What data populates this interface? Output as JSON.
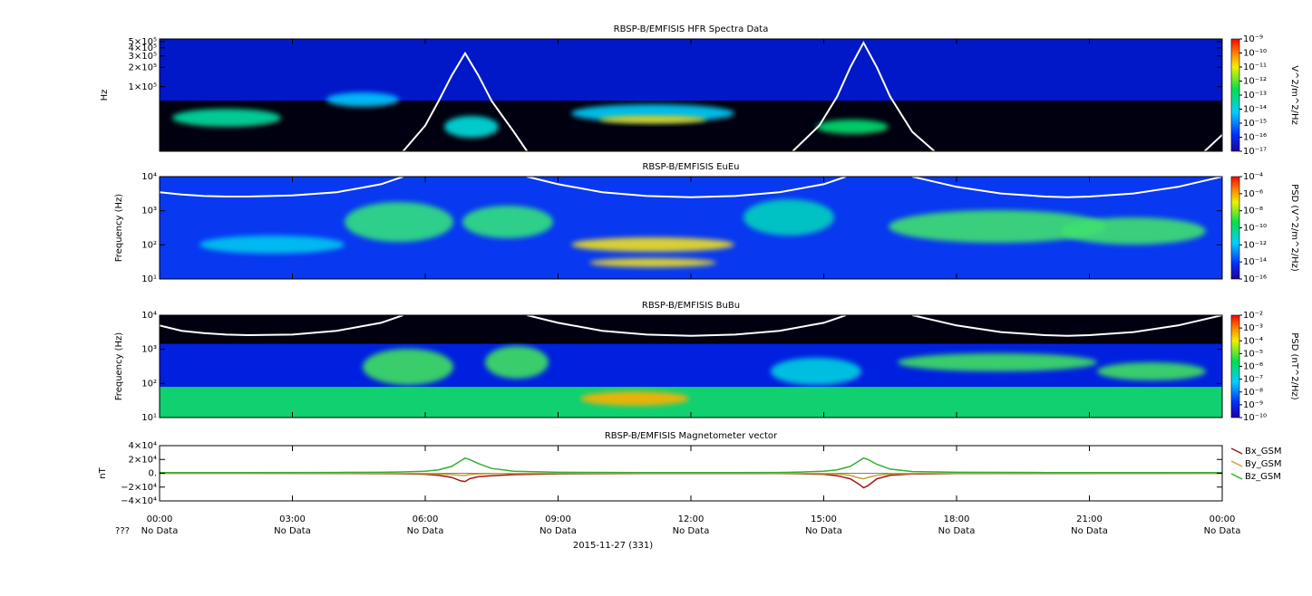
{
  "chart_data": [
    {
      "type": "spectrogram",
      "title": "RBSP-B/EMFISIS  HFR Spectra Data",
      "ylabel": "Hz",
      "log_y": true,
      "ylim": [
        10000,
        550000
      ],
      "yticks": [
        {
          "value": 500000,
          "label": "5×10⁵"
        },
        {
          "value": 400000,
          "label": "4×10⁵"
        },
        {
          "value": 300000,
          "label": "3×10⁵"
        },
        {
          "value": 200000,
          "label": "2×10⁵"
        },
        {
          "value": 100000,
          "label": "1×10⁵"
        }
      ],
      "colorbar": {
        "label": "V^2/m^2/Hz",
        "lim": [
          1e-17,
          1e-09
        ],
        "ticks": [
          {
            "value": 1e-09,
            "label": "10⁻⁹"
          },
          {
            "value": 1e-10,
            "label": "10⁻¹⁰"
          },
          {
            "value": 1e-11,
            "label": "10⁻¹¹"
          },
          {
            "value": 1e-12,
            "label": "10⁻¹²"
          },
          {
            "value": 1e-13,
            "label": "10⁻¹³"
          },
          {
            "value": 1e-14,
            "label": "10⁻¹⁴"
          },
          {
            "value": 1e-15,
            "label": "10⁻¹⁵"
          },
          {
            "value": 1e-16,
            "label": "10⁻¹⁶"
          },
          {
            "value": 1e-17,
            "label": "10⁻¹⁷"
          }
        ]
      },
      "overlay": {
        "color": "#ffffff",
        "x": [
          5.5,
          6,
          6.3,
          6.6,
          6.9,
          7.2,
          7.5,
          8,
          8.3,
          11,
          14.3,
          14.9,
          15.3,
          15.6,
          15.9,
          16.2,
          16.5,
          17,
          17.5,
          20,
          23.6,
          24
        ],
        "values": [
          10000,
          25000,
          60000,
          150000,
          330000,
          150000,
          60000,
          20000,
          10000,
          null,
          10000,
          25000,
          70000,
          200000,
          480000,
          200000,
          70000,
          20000,
          10000,
          null,
          10000,
          18000
        ]
      }
    },
    {
      "type": "spectrogram",
      "title": "RBSP-B/EMFISIS  EuEu",
      "ylabel": "Frequency (Hz)",
      "log_y": true,
      "ylim": [
        10,
        10000
      ],
      "yticks": [
        {
          "value": 10000,
          "label": "10⁴"
        },
        {
          "value": 1000,
          "label": "10³"
        },
        {
          "value": 100,
          "label": "10²"
        },
        {
          "value": 10,
          "label": "10¹"
        }
      ],
      "colorbar": {
        "label": "PSD (V^2/m^2/Hz)",
        "lim": [
          1e-16,
          0.0001
        ],
        "ticks": [
          {
            "value": 0.0001,
            "label": "10⁻⁴"
          },
          {
            "value": 1e-06,
            "label": "10⁻⁶"
          },
          {
            "value": 1e-08,
            "label": "10⁻⁸"
          },
          {
            "value": 1e-10,
            "label": "10⁻¹⁰"
          },
          {
            "value": 1e-12,
            "label": "10⁻¹²"
          },
          {
            "value": 1e-14,
            "label": "10⁻¹⁴"
          },
          {
            "value": 1e-16,
            "label": "10⁻¹⁶"
          }
        ]
      },
      "overlay": {
        "color": "#ffffff",
        "x": [
          0,
          0.5,
          1,
          1.5,
          2,
          3,
          4,
          5,
          5.5,
          6.9,
          8.3,
          9,
          10,
          11,
          12,
          13,
          14,
          15,
          15.5,
          16,
          17,
          18,
          19,
          20,
          20.5,
          21,
          22,
          23,
          24
        ],
        "values": [
          3500,
          3000,
          2700,
          2600,
          2600,
          2800,
          3500,
          6000,
          10000,
          null,
          10000,
          6000,
          3500,
          2700,
          2500,
          2700,
          3500,
          6000,
          10000,
          null,
          10000,
          5000,
          3200,
          2600,
          2500,
          2600,
          3200,
          5000,
          10000
        ]
      }
    },
    {
      "type": "spectrogram",
      "title": "RBSP-B/EMFISIS  BuBu",
      "ylabel": "Frequency (Hz)",
      "log_y": true,
      "ylim": [
        10,
        10000
      ],
      "yticks": [
        {
          "value": 10000,
          "label": "10⁴"
        },
        {
          "value": 1000,
          "label": "10³"
        },
        {
          "value": 100,
          "label": "10²"
        },
        {
          "value": 10,
          "label": "10¹"
        }
      ],
      "colorbar": {
        "label": "PSD (nT^2/Hz)",
        "lim": [
          1e-10,
          0.01
        ],
        "ticks": [
          {
            "value": 0.01,
            "label": "10⁻²"
          },
          {
            "value": 0.001,
            "label": "10⁻³"
          },
          {
            "value": 0.0001,
            "label": "10⁻⁴"
          },
          {
            "value": 1e-05,
            "label": "10⁻⁵"
          },
          {
            "value": 1e-06,
            "label": "10⁻⁶"
          },
          {
            "value": 1e-07,
            "label": "10⁻⁷"
          },
          {
            "value": 1e-08,
            "label": "10⁻⁸"
          },
          {
            "value": 1e-09,
            "label": "10⁻⁹"
          },
          {
            "value": 1e-10,
            "label": "10⁻¹⁰"
          }
        ]
      },
      "overlay": {
        "color": "#ffffff",
        "x": [
          0,
          0.5,
          1,
          1.5,
          2,
          3,
          4,
          5,
          5.5,
          6.9,
          8.3,
          9,
          10,
          11,
          12,
          13,
          14,
          15,
          15.5,
          16,
          17,
          18,
          19,
          20,
          20.5,
          21,
          22,
          23,
          24
        ],
        "values": [
          5000,
          3500,
          3000,
          2700,
          2600,
          2700,
          3500,
          6000,
          10000,
          null,
          10000,
          6000,
          3500,
          2700,
          2500,
          2700,
          3500,
          6000,
          10000,
          null,
          10000,
          5000,
          3200,
          2600,
          2500,
          2600,
          3200,
          5000,
          10000
        ]
      }
    },
    {
      "type": "line",
      "title": "RBSP-B/EMFISIS  Magnetometer vector",
      "ylabel": "nT",
      "ylim": [
        -40000,
        40000
      ],
      "yticks": [
        {
          "value": 40000,
          "label": "4×10⁴"
        },
        {
          "value": 20000,
          "label": "2×10⁴"
        },
        {
          "value": 0,
          "label": "0."
        },
        {
          "value": -20000,
          "label": "−2×10⁴"
        },
        {
          "value": -40000,
          "label": "−4×10⁴"
        }
      ],
      "xlim": [
        0,
        24
      ],
      "xticks": [
        {
          "value": 0,
          "label": "00:00"
        },
        {
          "value": 3,
          "label": "03:00"
        },
        {
          "value": 6,
          "label": "06:00"
        },
        {
          "value": 9,
          "label": "09:00"
        },
        {
          "value": 12,
          "label": "12:00"
        },
        {
          "value": 15,
          "label": "15:00"
        },
        {
          "value": 18,
          "label": "18:00"
        },
        {
          "value": 21,
          "label": "21:00"
        },
        {
          "value": 24,
          "label": "00:00"
        }
      ],
      "xtick_sublabels": [
        "No Data",
        "No Data",
        "No Data",
        "No Data",
        "No Data",
        "No Data",
        "No Data",
        "No Data",
        "No Data"
      ],
      "xtick_sublabel_prefix": "???",
      "xlabel": "2015-11-27 (331)",
      "x": [
        0,
        2,
        4,
        5,
        5.5,
        6,
        6.3,
        6.6,
        6.8,
        6.9,
        7,
        7.2,
        7.5,
        8,
        9,
        11,
        13,
        14,
        14.5,
        15,
        15.3,
        15.6,
        15.8,
        15.9,
        16,
        16.2,
        16.5,
        17,
        18,
        20,
        22,
        24
      ],
      "series": [
        {
          "name": "Bx_GSM",
          "color": "#a01818",
          "values": [
            0,
            0,
            -200,
            -500,
            -800,
            -1500,
            -3000,
            -6000,
            -11000,
            -12000,
            -8000,
            -5000,
            -3500,
            -2000,
            -800,
            -300,
            -200,
            -400,
            -800,
            -1500,
            -3500,
            -8000,
            -16000,
            -21000,
            -18000,
            -8000,
            -3000,
            -1000,
            -400,
            -200,
            -100,
            0
          ]
        },
        {
          "name": "By_GSM",
          "color": "#c8a038",
          "values": [
            0,
            0,
            0,
            0,
            -200,
            -500,
            -1000,
            -2000,
            -3000,
            -3000,
            -2000,
            -1000,
            -500,
            -200,
            0,
            0,
            0,
            0,
            -200,
            -500,
            -1000,
            -3000,
            -7000,
            -8000,
            -6000,
            -3000,
            -1000,
            -300,
            0,
            0,
            0,
            0
          ]
        },
        {
          "name": "Bz_GSM",
          "color": "#30b030",
          "values": [
            1000,
            1000,
            1200,
            1500,
            2000,
            3000,
            5000,
            10000,
            18000,
            22000,
            20000,
            14000,
            7000,
            3000,
            1500,
            1000,
            1000,
            1200,
            1800,
            3000,
            5000,
            10000,
            18000,
            22000,
            20000,
            13000,
            6000,
            2500,
            1500,
            1000,
            1000,
            1000
          ]
        }
      ]
    }
  ]
}
